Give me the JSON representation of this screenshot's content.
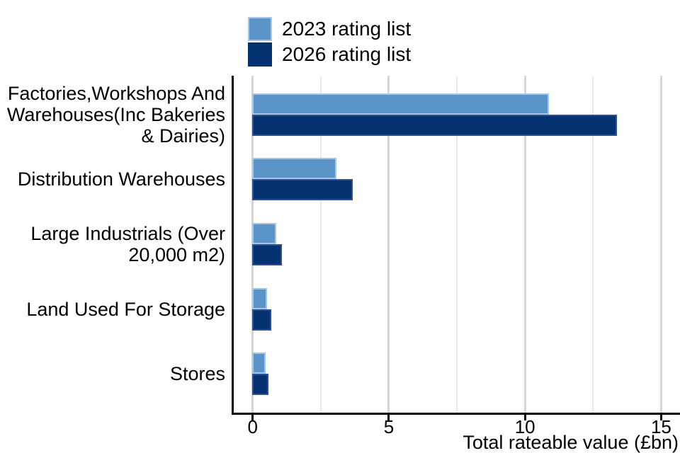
{
  "chart_data": {
    "type": "bar",
    "orientation": "horizontal",
    "title": "",
    "xlabel": "Total rateable value (£bn)",
    "ylabel": "",
    "categories": [
      "Factories,Workshops And\nWarehouses(Inc Bakeries\n& Dairies)",
      "Distribution Warehouses",
      "Large Industrials (Over\n20,000 m2)",
      "Land Used For Storage",
      "Stores"
    ],
    "series": [
      {
        "name": "2023 rating list",
        "color": "#5b94c9",
        "border_color": "#a6c6e3",
        "values": [
          10.9,
          3.1,
          0.9,
          0.55,
          0.5
        ]
      },
      {
        "name": "2026 rating list",
        "color": "#04316f",
        "border_color": "#2e4f90",
        "values": [
          13.4,
          3.7,
          1.1,
          0.7,
          0.6
        ]
      }
    ],
    "xlim": [
      0,
      15.7
    ],
    "xticks": [
      0,
      5,
      10,
      15
    ],
    "xtick_labels": [
      "0",
      "5",
      "10",
      "15"
    ],
    "minor_gridlines": [
      2.5,
      7.5,
      12.5
    ],
    "legend": {
      "position": "top-left"
    },
    "grid": "vertical",
    "gridline_major_color": "#d6d6d6",
    "gridline_minor_color": "#eaeaea",
    "axis_color": "#000000",
    "background_color": "#ffffff"
  }
}
